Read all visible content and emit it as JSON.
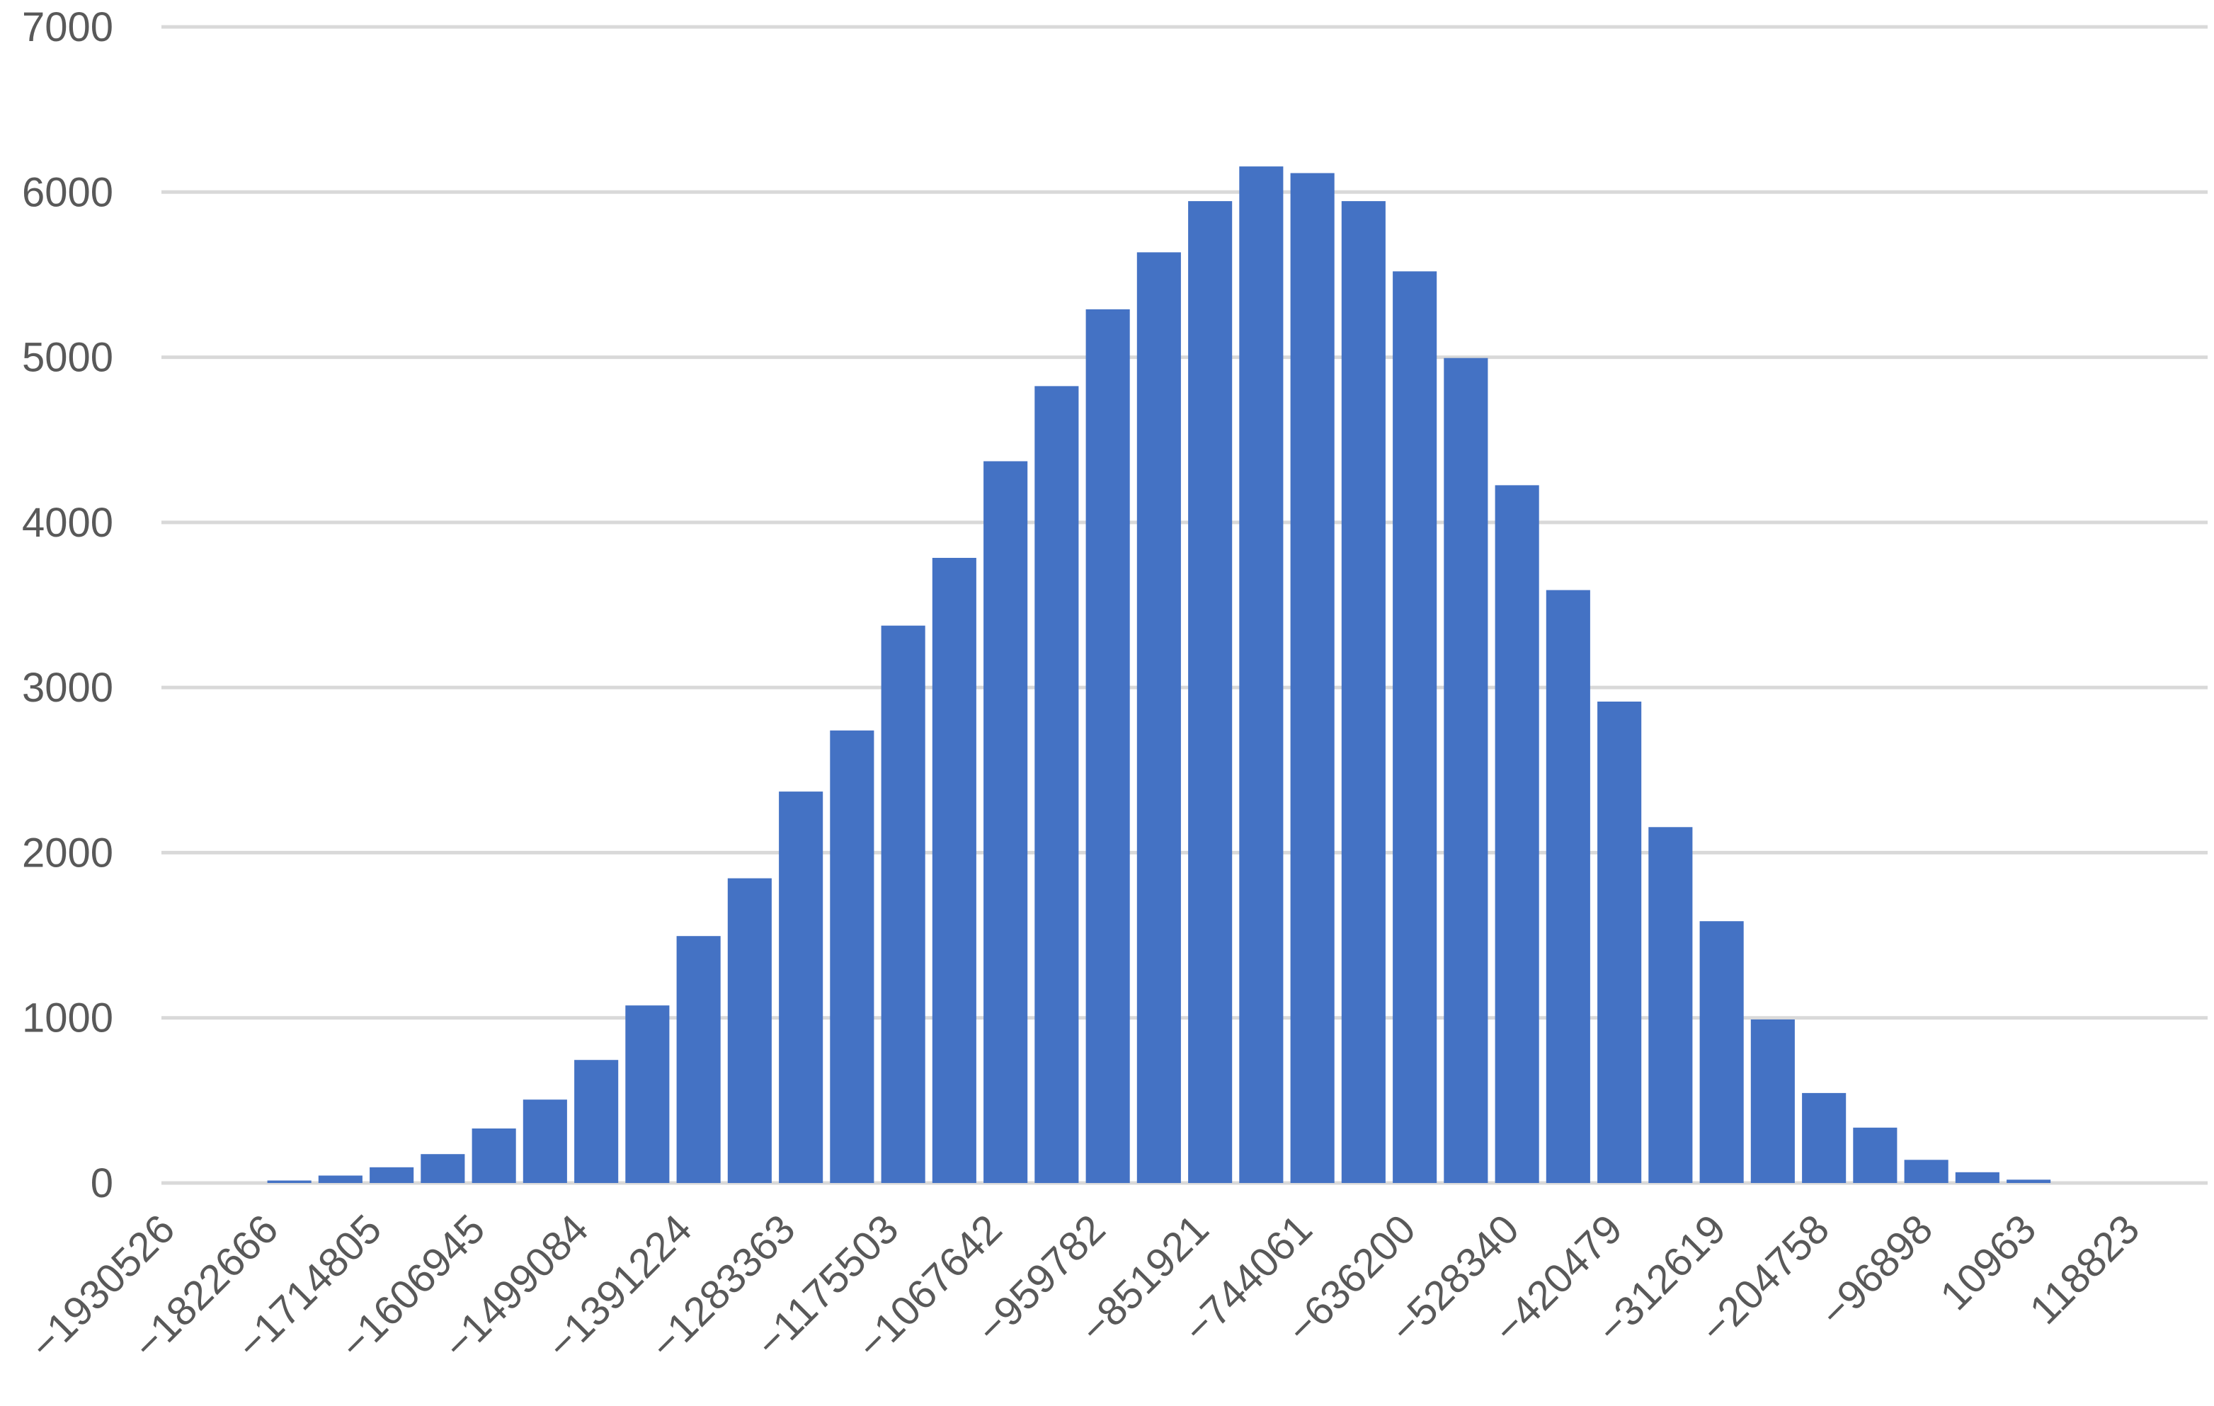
{
  "chart_data": {
    "type": "bar",
    "title": "",
    "xlabel": "",
    "ylabel": "",
    "ylim": [
      0,
      7000
    ],
    "yticks": [
      0,
      1000,
      2000,
      3000,
      4000,
      5000,
      6000,
      7000
    ],
    "grid": true,
    "legend": "none",
    "bar_color": "#4472c4",
    "xtick_labels": [
      "−1930526",
      "−1822666",
      "−1714805",
      "−1606945",
      "−1499084",
      "−1391224",
      "−1283363",
      "−1175503",
      "−1067642",
      "−959782",
      "−851921",
      "−744061",
      "−636200",
      "−528340",
      "−420479",
      "−312619",
      "−204758",
      "−96898",
      "10963",
      "118823"
    ],
    "values": [
      0,
      0,
      15,
      45,
      95,
      175,
      330,
      505,
      745,
      1075,
      1495,
      1845,
      2370,
      2740,
      3375,
      3785,
      4370,
      4825,
      5290,
      5635,
      5945,
      6155,
      6115,
      5945,
      5520,
      4995,
      4225,
      3590,
      2915,
      2155,
      1585,
      990,
      545,
      335,
      140,
      65,
      20,
      0,
      0,
      0
    ]
  }
}
